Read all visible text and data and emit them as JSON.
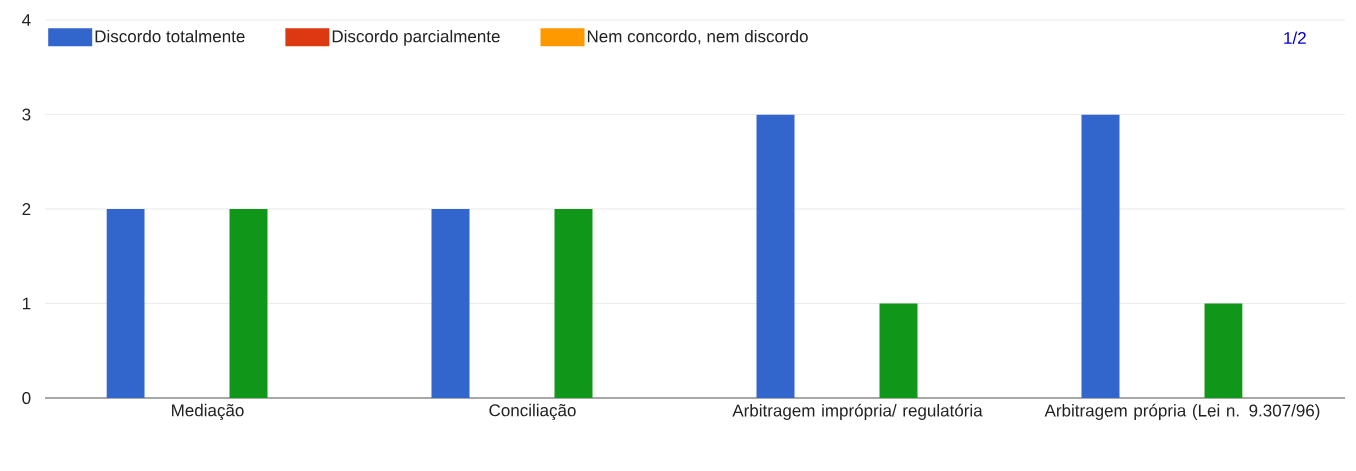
{
  "chart_data": {
    "type": "bar",
    "categories": [
      "Mediação",
      "Conciliação",
      "Arbitragem imprópria/ regulatória",
      "Arbitragem própria (Lei n. 9.307/96)"
    ],
    "series": [
      {
        "name": "Discordo totalmente",
        "color": "#3366cc",
        "values": [
          2,
          2,
          3,
          3
        ]
      },
      {
        "name": "Discordo parcialmente",
        "color": "#dc3912",
        "values": [
          0,
          0,
          0,
          0
        ]
      },
      {
        "name": "Nem concordo, nem discordo",
        "color": "#ff9900",
        "values": [
          0,
          0,
          0,
          0
        ]
      },
      {
        "color": "#109618",
        "values": [
          2,
          2,
          1,
          1
        ]
      },
      {
        "color": "#990099",
        "values": [
          0,
          0,
          0,
          0
        ]
      }
    ],
    "ylim": [
      0,
      4
    ],
    "yticks": [
      0,
      1,
      2,
      3,
      4
    ],
    "grid": "y",
    "legend": "top left",
    "annotations": [
      "1/2"
    ]
  }
}
